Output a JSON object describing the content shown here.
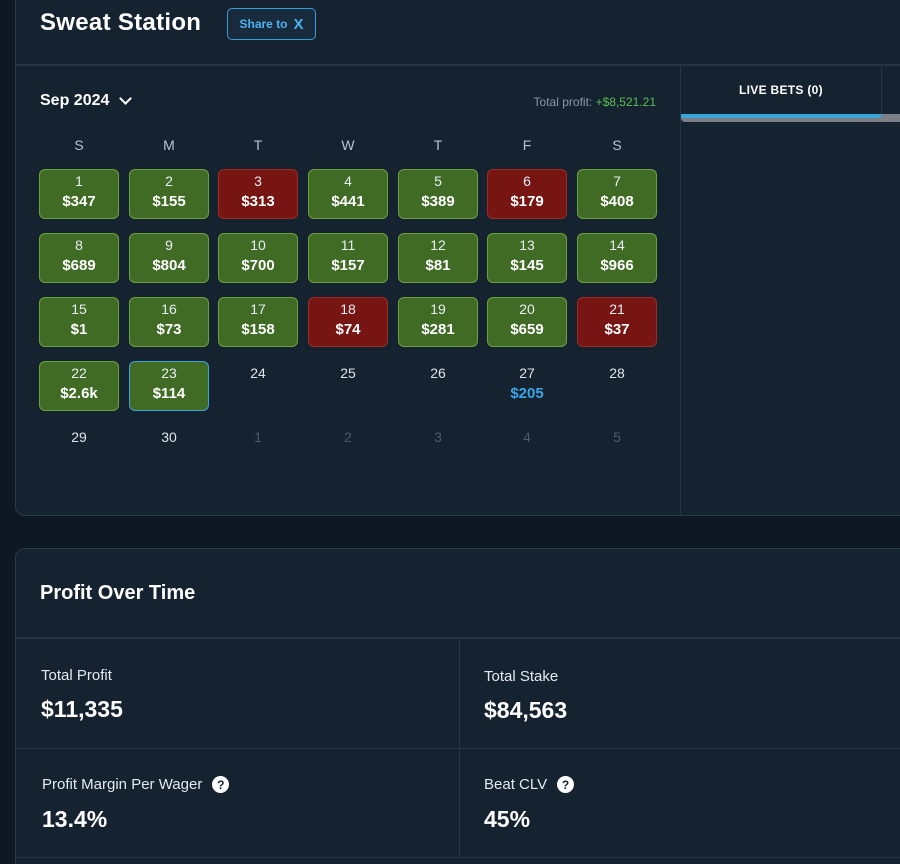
{
  "header": {
    "title": "Sweat Station",
    "share_label": "Share to",
    "share_icon": "X"
  },
  "calendar": {
    "month_label": "Sep 2024",
    "total_profit_label": "Total profit:",
    "total_profit_value": "+$8,521.21",
    "weekdays": [
      "S",
      "M",
      "T",
      "W",
      "T",
      "F",
      "S"
    ],
    "days": [
      {
        "day": "1",
        "amount": "$347",
        "status": "win"
      },
      {
        "day": "2",
        "amount": "$155",
        "status": "win"
      },
      {
        "day": "3",
        "amount": "$313",
        "status": "loss"
      },
      {
        "day": "4",
        "amount": "$441",
        "status": "win"
      },
      {
        "day": "5",
        "amount": "$389",
        "status": "win"
      },
      {
        "day": "6",
        "amount": "$179",
        "status": "loss"
      },
      {
        "day": "7",
        "amount": "$408",
        "status": "win"
      },
      {
        "day": "8",
        "amount": "$689",
        "status": "win"
      },
      {
        "day": "9",
        "amount": "$804",
        "status": "win"
      },
      {
        "day": "10",
        "amount": "$700",
        "status": "win"
      },
      {
        "day": "11",
        "amount": "$157",
        "status": "win"
      },
      {
        "day": "12",
        "amount": "$81",
        "status": "win"
      },
      {
        "day": "13",
        "amount": "$145",
        "status": "win"
      },
      {
        "day": "14",
        "amount": "$966",
        "status": "win"
      },
      {
        "day": "15",
        "amount": "$1",
        "status": "win"
      },
      {
        "day": "16",
        "amount": "$73",
        "status": "win"
      },
      {
        "day": "17",
        "amount": "$158",
        "status": "win"
      },
      {
        "day": "18",
        "amount": "$74",
        "status": "loss"
      },
      {
        "day": "19",
        "amount": "$281",
        "status": "win"
      },
      {
        "day": "20",
        "amount": "$659",
        "status": "win"
      },
      {
        "day": "21",
        "amount": "$37",
        "status": "loss"
      },
      {
        "day": "22",
        "amount": "$2.6k",
        "status": "win"
      },
      {
        "day": "23",
        "amount": "$114",
        "status": "today"
      },
      {
        "day": "24",
        "amount": "",
        "status": "plain"
      },
      {
        "day": "25",
        "amount": "",
        "status": "plain"
      },
      {
        "day": "26",
        "amount": "",
        "status": "plain"
      },
      {
        "day": "27",
        "amount": "$205",
        "status": "pending"
      },
      {
        "day": "28",
        "amount": "",
        "status": "plain"
      },
      {
        "day": "29",
        "amount": "",
        "status": "plain"
      },
      {
        "day": "30",
        "amount": "",
        "status": "plain"
      },
      {
        "day": "1",
        "amount": "",
        "status": "other"
      },
      {
        "day": "2",
        "amount": "",
        "status": "other"
      },
      {
        "day": "3",
        "amount": "",
        "status": "other"
      },
      {
        "day": "4",
        "amount": "",
        "status": "other"
      },
      {
        "day": "5",
        "amount": "",
        "status": "other"
      }
    ]
  },
  "live_bets": {
    "tab_label": "LIVE BETS (0)"
  },
  "profit_over_time": {
    "title": "Profit Over Time",
    "total_profit_label": "Total Profit",
    "total_profit_value": "$11,335",
    "total_stake_label": "Total Stake",
    "total_stake_value": "$84,563",
    "margin_label": "Profit Margin Per Wager",
    "margin_value": "13.4%",
    "clv_label": "Beat CLV",
    "clv_value": "45%",
    "help_glyph": "?"
  },
  "colors": {
    "win": "#406b25",
    "loss": "#771513",
    "accent": "#3aa5d8",
    "profit": "#5bbf4e"
  }
}
